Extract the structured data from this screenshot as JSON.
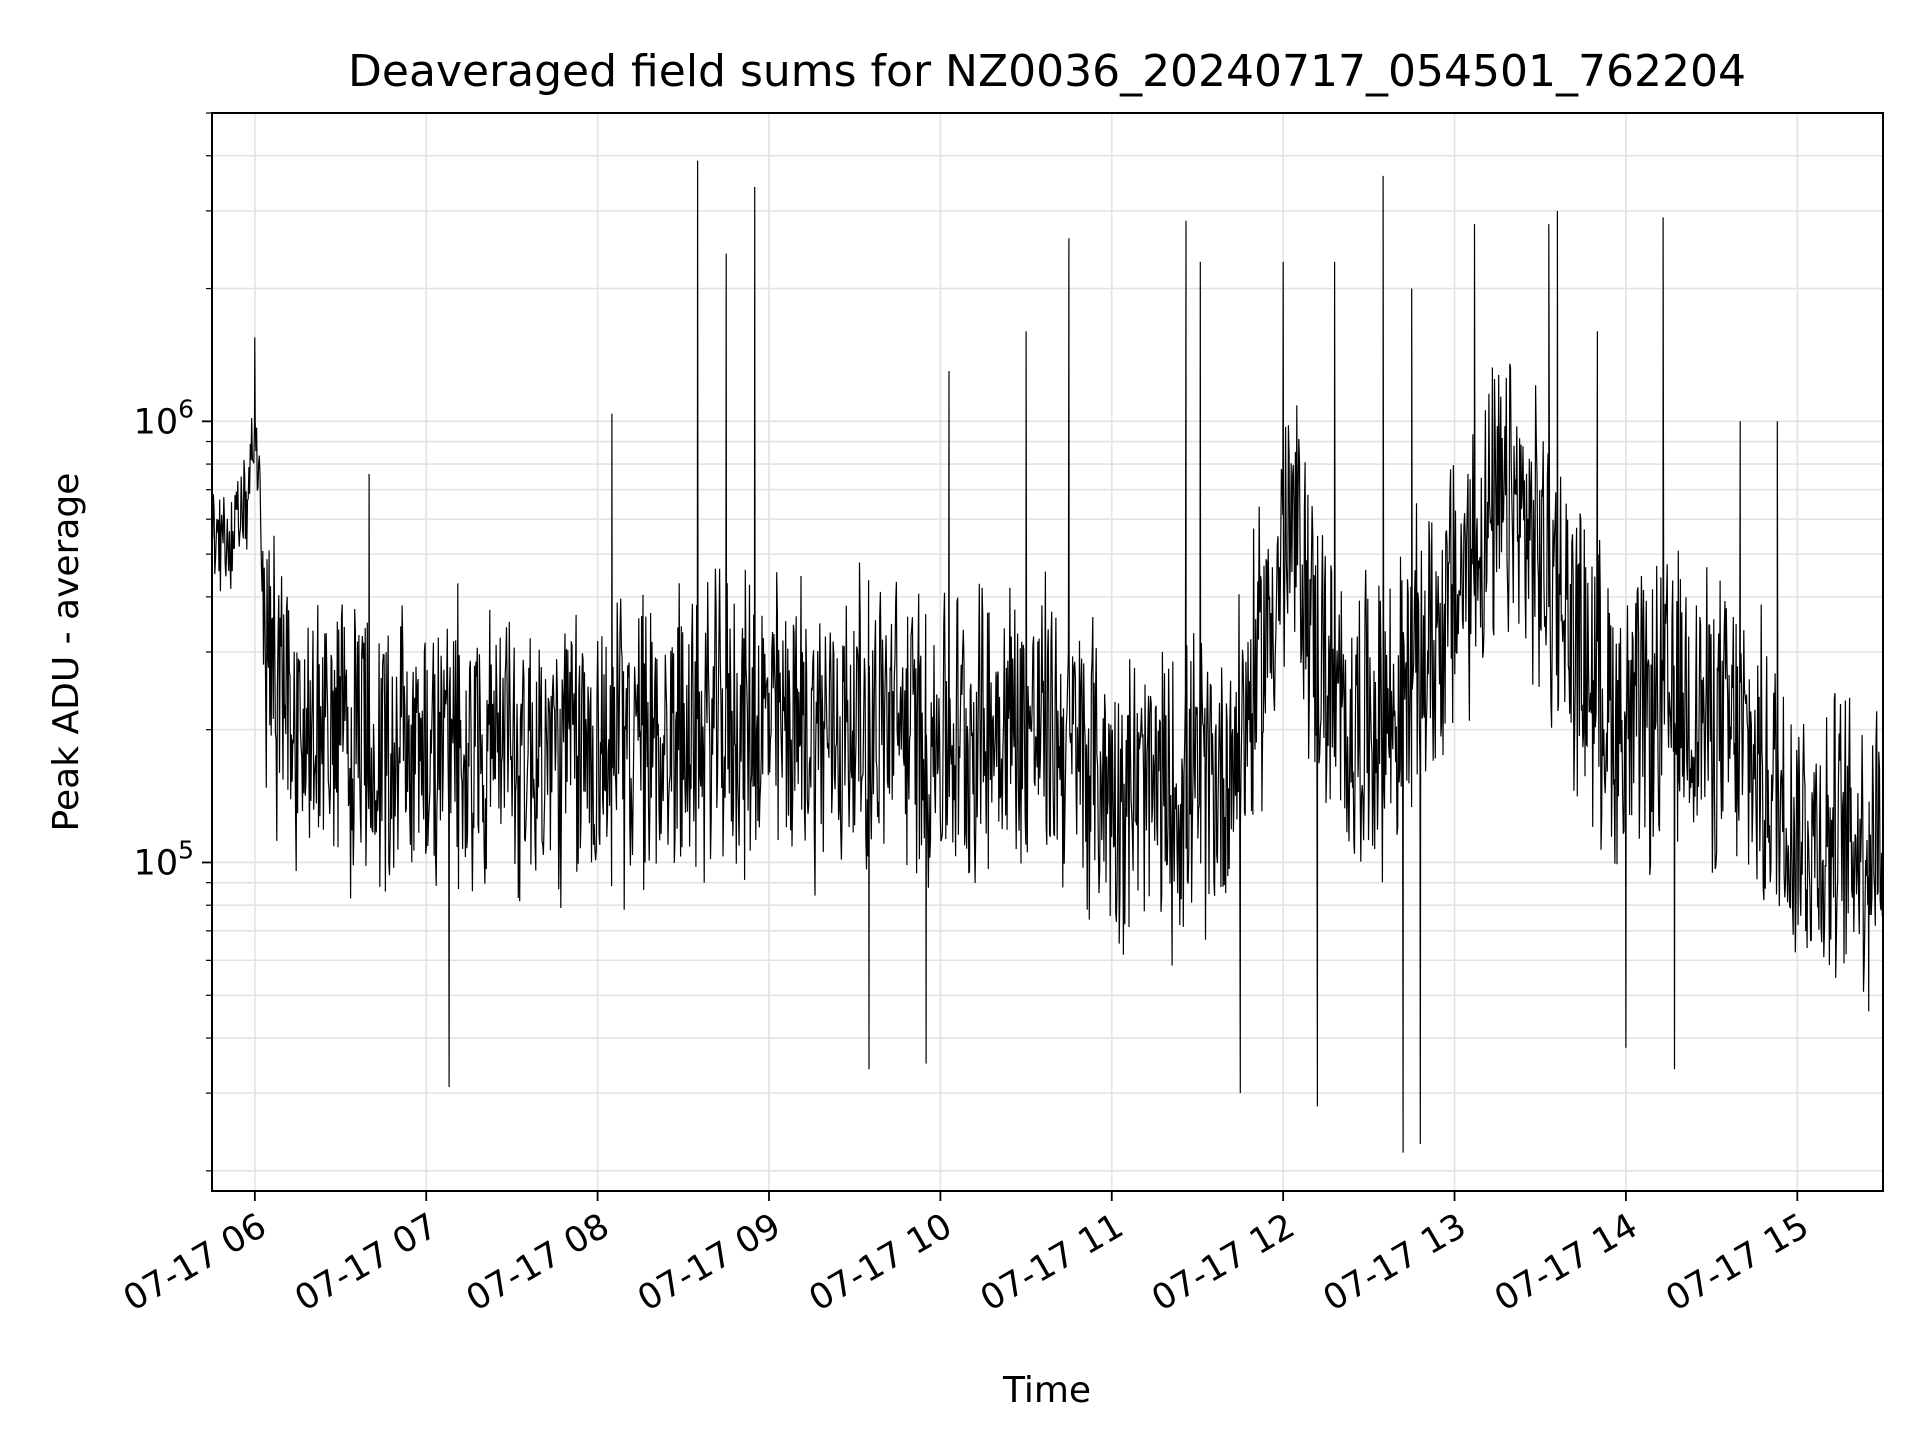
{
  "chart_data": {
    "type": "line",
    "title": "Deaveraged field sums for NZ0036_20240717_054501_762204",
    "xlabel": "Time",
    "ylabel": "Peak ADU - average",
    "x_tick_labels": [
      "07-17 06",
      "07-17 07",
      "07-17 08",
      "07-17 09",
      "07-17 10",
      "07-17 11",
      "07-17 12",
      "07-17 13",
      "07-17 14",
      "07-17 15"
    ],
    "x_ticks": [
      "2024-07-17 06:00",
      "2024-07-17 07:00",
      "2024-07-17 08:00",
      "2024-07-17 09:00",
      "2024-07-17 10:00",
      "2024-07-17 11:00",
      "2024-07-17 12:00",
      "2024-07-17 13:00",
      "2024-07-17 14:00",
      "2024-07-17 15:00"
    ],
    "xlim": [
      "2024-07-17 05:45",
      "2024-07-17 15:30"
    ],
    "y_scale": "log",
    "ylim": [
      18000,
      5000000
    ],
    "y_major_ticks": [
      {
        "value": 100000,
        "base": "10",
        "exp": "5"
      },
      {
        "value": 1000000,
        "base": "10",
        "exp": "6"
      }
    ],
    "grid": true,
    "line_color": "#000000",
    "grid_color": "#e3e3e3",
    "series": [
      {
        "x": [
          "2024-07-17 05:45",
          "2024-07-17 05:48",
          "2024-07-17 05:52",
          "2024-07-17 05:55",
          "2024-07-17 05:58",
          "2024-07-17 06:00",
          "2024-07-17 06:02",
          "2024-07-17 06:04",
          "2024-07-17 06:08",
          "2024-07-17 06:15",
          "2024-07-17 06:30",
          "2024-07-17 06:45",
          "2024-07-17 07:00",
          "2024-07-17 07:20",
          "2024-07-17 07:40",
          "2024-07-17 08:00",
          "2024-07-17 08:20",
          "2024-07-17 08:40",
          "2024-07-17 09:00",
          "2024-07-17 09:20",
          "2024-07-17 09:40",
          "2024-07-17 10:00",
          "2024-07-17 10:20",
          "2024-07-17 10:40",
          "2024-07-17 11:00",
          "2024-07-17 11:20",
          "2024-07-17 11:40",
          "2024-07-17 11:50",
          "2024-07-17 12:00",
          "2024-07-17 12:05",
          "2024-07-17 12:10",
          "2024-07-17 12:20",
          "2024-07-17 12:40",
          "2024-07-17 13:00",
          "2024-07-17 13:10",
          "2024-07-17 13:20",
          "2024-07-17 13:30",
          "2024-07-17 13:40",
          "2024-07-17 13:50",
          "2024-07-17 14:00",
          "2024-07-17 14:20",
          "2024-07-17 14:40",
          "2024-07-17 15:00",
          "2024-07-17 15:15",
          "2024-07-17 15:30"
        ],
        "y": [
          600000,
          520000,
          550000,
          580000,
          700000,
          1000000,
          600000,
          300000,
          250000,
          200000,
          190000,
          185000,
          180000,
          190000,
          175000,
          180000,
          190000,
          200000,
          210000,
          200000,
          210000,
          190000,
          210000,
          200000,
          150000,
          140000,
          160000,
          250000,
          500000,
          550000,
          350000,
          200000,
          220000,
          400000,
          550000,
          650000,
          500000,
          350000,
          250000,
          200000,
          230000,
          190000,
          120000,
          110000,
          120000
        ]
      }
    ],
    "spikes": [
      {
        "x": "2024-07-17 06:00",
        "y": 1550000
      },
      {
        "x": "2024-07-17 06:40",
        "y": 760000
      },
      {
        "x": "2024-07-17 07:08",
        "y": 31000
      },
      {
        "x": "2024-07-17 08:05",
        "y": 1040000
      },
      {
        "x": "2024-07-17 08:35",
        "y": 3900000
      },
      {
        "x": "2024-07-17 08:45",
        "y": 2400000
      },
      {
        "x": "2024-07-17 08:55",
        "y": 3400000
      },
      {
        "x": "2024-07-17 09:35",
        "y": 34000
      },
      {
        "x": "2024-07-17 09:55",
        "y": 35000
      },
      {
        "x": "2024-07-17 10:03",
        "y": 1300000
      },
      {
        "x": "2024-07-17 10:30",
        "y": 1600000
      },
      {
        "x": "2024-07-17 10:45",
        "y": 2600000
      },
      {
        "x": "2024-07-17 11:26",
        "y": 2850000
      },
      {
        "x": "2024-07-17 11:31",
        "y": 2300000
      },
      {
        "x": "2024-07-17 11:45",
        "y": 30000
      },
      {
        "x": "2024-07-17 12:00",
        "y": 2300000
      },
      {
        "x": "2024-07-17 12:12",
        "y": 28000
      },
      {
        "x": "2024-07-17 12:18",
        "y": 2300000
      },
      {
        "x": "2024-07-17 12:35",
        "y": 3600000
      },
      {
        "x": "2024-07-17 12:42",
        "y": 22000
      },
      {
        "x": "2024-07-17 12:45",
        "y": 2000000
      },
      {
        "x": "2024-07-17 12:48",
        "y": 23000
      },
      {
        "x": "2024-07-17 13:07",
        "y": 2800000
      },
      {
        "x": "2024-07-17 13:33",
        "y": 2800000
      },
      {
        "x": "2024-07-17 13:36",
        "y": 3000000
      },
      {
        "x": "2024-07-17 13:50",
        "y": 1600000
      },
      {
        "x": "2024-07-17 14:00",
        "y": 38000
      },
      {
        "x": "2024-07-17 14:13",
        "y": 2900000
      },
      {
        "x": "2024-07-17 14:17",
        "y": 34000
      },
      {
        "x": "2024-07-17 14:40",
        "y": 1000000
      },
      {
        "x": "2024-07-17 14:53",
        "y": 1000000
      },
      {
        "x": "2024-07-17 15:25",
        "y": 46000
      }
    ]
  }
}
